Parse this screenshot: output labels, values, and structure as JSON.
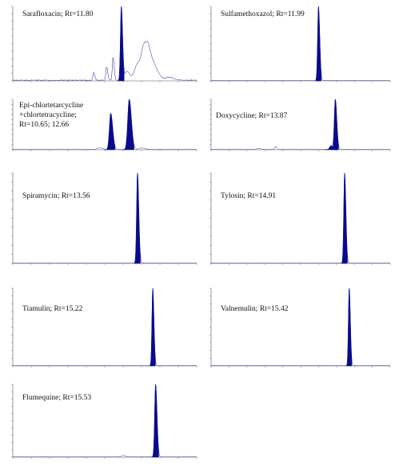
{
  "figure": {
    "panels": [
      {
        "id": "sarafloxacin",
        "label_lines": [
          "Sarafloxacin; Rt=11.80"
        ],
        "chart_data": {
          "type": "line",
          "x_range": [
            0,
            20
          ],
          "y_range": [
            0,
            100
          ],
          "baseline_noise": 2,
          "peaks": [
            {
              "rt": 11.8,
              "height": 100,
              "width": 0.12,
              "filled": true
            },
            {
              "rt": 8.8,
              "height": 10,
              "width": 0.1,
              "filled": false
            },
            {
              "rt": 10.2,
              "height": 18,
              "width": 0.1,
              "filled": false
            },
            {
              "rt": 10.9,
              "height": 30,
              "width": 0.1,
              "filled": false
            },
            {
              "rt": 12.4,
              "height": 12,
              "width": 0.25,
              "filled": false
            },
            {
              "rt": 13.6,
              "height": 22,
              "width": 0.45,
              "filled": false
            },
            {
              "rt": 14.3,
              "height": 35,
              "width": 0.35,
              "filled": false
            },
            {
              "rt": 14.8,
              "height": 27,
              "width": 0.35,
              "filled": false
            },
            {
              "rt": 15.5,
              "height": 12,
              "width": 0.4,
              "filled": false
            },
            {
              "rt": 17.0,
              "height": 4,
              "width": 0.4,
              "filled": false
            }
          ]
        }
      },
      {
        "id": "sulfamethoxazol",
        "label_lines": [
          "Sulfamethoxazol; Rt=11.99"
        ],
        "chart_data": {
          "type": "line",
          "x_range": [
            0,
            20
          ],
          "y_range": [
            0,
            100
          ],
          "baseline_noise": 0.5,
          "peaks": [
            {
              "rt": 11.99,
              "height": 100,
              "width": 0.12,
              "filled": true
            }
          ]
        }
      },
      {
        "id": "chlortetracycline",
        "label_lines": [
          "Epi-chlortetarcycline",
          "+chlortetracycline;",
          "Rt=10.65; 12.66"
        ],
        "chart_data": {
          "type": "line",
          "x_range": [
            0,
            20
          ],
          "y_range": [
            0,
            100
          ],
          "baseline_noise": 1,
          "peaks": [
            {
              "rt": 10.65,
              "height": 72,
              "width": 0.18,
              "filled": true
            },
            {
              "rt": 12.66,
              "height": 100,
              "width": 0.2,
              "filled": true
            },
            {
              "rt": 9.4,
              "height": 3,
              "width": 0.3,
              "filled": false
            },
            {
              "rt": 14.0,
              "height": 3,
              "width": 0.3,
              "filled": false
            }
          ]
        }
      },
      {
        "id": "doxycycline",
        "label_lines": [
          "Doxycycline; Rt=13.87"
        ],
        "chart_data": {
          "type": "line",
          "x_range": [
            0,
            20
          ],
          "y_range": [
            0,
            100
          ],
          "baseline_noise": 1,
          "peaks": [
            {
              "rt": 13.87,
              "height": 100,
              "width": 0.14,
              "filled": true
            },
            {
              "rt": 13.4,
              "height": 8,
              "width": 0.2,
              "filled": true
            },
            {
              "rt": 7.2,
              "height": 6,
              "width": 0.1,
              "filled": false
            },
            {
              "rt": 5.3,
              "height": 2,
              "width": 0.2,
              "filled": false
            }
          ]
        }
      },
      {
        "id": "spiramycin",
        "label_lines": [
          "Spiramycin; Rt=13.56"
        ],
        "chart_data": {
          "type": "line",
          "x_range": [
            0,
            20
          ],
          "y_range": [
            0,
            100
          ],
          "baseline_noise": 0.3,
          "peaks": [
            {
              "rt": 13.56,
              "height": 100,
              "width": 0.12,
              "filled": true
            }
          ]
        }
      },
      {
        "id": "tylosin",
        "label_lines": [
          "Tylosin; Rt=14.91"
        ],
        "chart_data": {
          "type": "line",
          "x_range": [
            0,
            20
          ],
          "y_range": [
            0,
            100
          ],
          "baseline_noise": 0.3,
          "peaks": [
            {
              "rt": 14.91,
              "height": 100,
              "width": 0.12,
              "filled": true
            }
          ]
        }
      },
      {
        "id": "tiamulin",
        "label_lines": [
          "Tiamulin; Rt=15.22"
        ],
        "chart_data": {
          "type": "line",
          "x_range": [
            0,
            20
          ],
          "y_range": [
            0,
            100
          ],
          "baseline_noise": 0.3,
          "peaks": [
            {
              "rt": 15.22,
              "height": 100,
              "width": 0.11,
              "filled": true
            }
          ]
        }
      },
      {
        "id": "valnemulin",
        "label_lines": [
          "Valnemulin; Rt=15.42"
        ],
        "chart_data": {
          "type": "line",
          "x_range": [
            0,
            20
          ],
          "y_range": [
            0,
            100
          ],
          "baseline_noise": 0.3,
          "peaks": [
            {
              "rt": 15.42,
              "height": 100,
              "width": 0.11,
              "filled": true
            }
          ]
        }
      },
      {
        "id": "flumequine",
        "label_lines": [
          "Flumequine; Rt=15.53"
        ],
        "chart_data": {
          "type": "line",
          "x_range": [
            0,
            20
          ],
          "y_range": [
            0,
            100
          ],
          "baseline_noise": 0.5,
          "peaks": [
            {
              "rt": 15.53,
              "height": 100,
              "width": 0.13,
              "filled": true
            },
            {
              "rt": 12.0,
              "height": 2,
              "width": 0.2,
              "filled": false
            }
          ]
        }
      }
    ],
    "colors": {
      "peak_fill": "#0a0a8c",
      "trace": "#1a1a9c",
      "axis": "#555555",
      "tick_text": "#888888"
    }
  }
}
